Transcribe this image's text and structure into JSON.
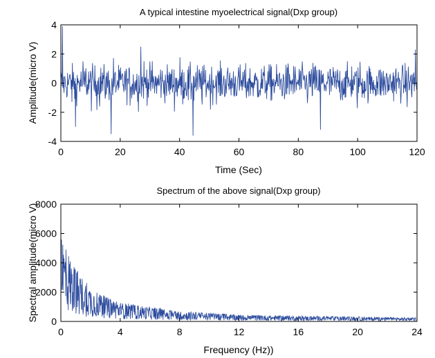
{
  "chart_data": [
    {
      "type": "line",
      "title": "A typical intestine myoelectrical signal(Dxp group)",
      "xlabel": "Time (Sec)",
      "ylabel": "Amplitude(micro V)",
      "xlim": [
        0,
        120
      ],
      "ylim": [
        -4,
        4
      ],
      "xticks": [
        0,
        20,
        40,
        60,
        80,
        100,
        120
      ],
      "yticks": [
        -4,
        -2,
        0,
        2,
        4
      ],
      "grid": false,
      "series": [
        {
          "color": "#2e4d9e",
          "description": "dense noisy oscillation around 0, typical amplitude about ±1.5 micro V",
          "notable_points": [
            {
              "x": 0.5,
              "y": 3.9
            },
            {
              "x": 5.0,
              "y": -3.0
            },
            {
              "x": 17.0,
              "y": -3.5
            },
            {
              "x": 27.0,
              "y": 2.5
            },
            {
              "x": 44.5,
              "y": -3.6
            },
            {
              "x": 87.5,
              "y": -3.2
            },
            {
              "x": 119.5,
              "y": 2.3
            }
          ]
        }
      ]
    },
    {
      "type": "line",
      "title": "Spectrum of the above signal(Dxp group)",
      "xlabel": "Frequency (Hz))",
      "ylabel": "Spectral amplitude(micro V)",
      "xlim": [
        0,
        24
      ],
      "ylim": [
        0,
        8000
      ],
      "xticks": [
        0,
        4,
        8,
        12,
        16,
        20,
        24
      ],
      "yticks": [
        0,
        2000,
        4000,
        6000,
        8000
      ],
      "grid": false,
      "series": [
        {
          "color": "#2e4d9e",
          "description": "dense spectrum decaying with frequency",
          "envelope": [
            {
              "x": 0.1,
              "y": 6000
            },
            {
              "x": 0.5,
              "y": 4800
            },
            {
              "x": 1,
              "y": 3600
            },
            {
              "x": 2,
              "y": 2400
            },
            {
              "x": 3,
              "y": 1700
            },
            {
              "x": 4,
              "y": 1300
            },
            {
              "x": 6,
              "y": 1000
            },
            {
              "x": 8,
              "y": 700
            },
            {
              "x": 12,
              "y": 450
            },
            {
              "x": 16,
              "y": 380
            },
            {
              "x": 20,
              "y": 320
            },
            {
              "x": 24,
              "y": 250
            }
          ]
        }
      ]
    }
  ]
}
